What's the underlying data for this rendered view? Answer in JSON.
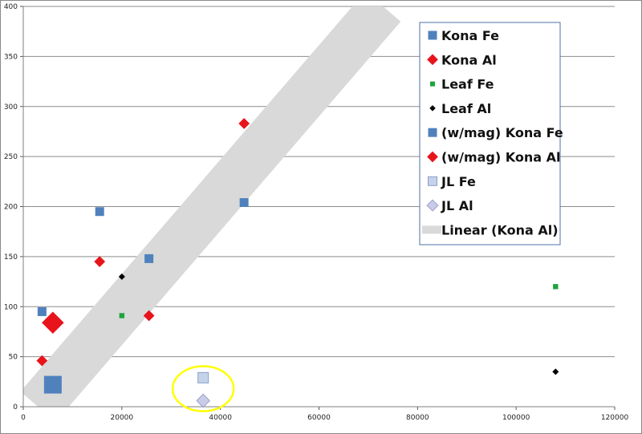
{
  "chart_data": {
    "type": "scatter",
    "title": "",
    "xlabel": "",
    "ylabel": "",
    "xlim": [
      0,
      120000
    ],
    "ylim": [
      0,
      400
    ],
    "x_ticks": [
      "0",
      "20000",
      "40000",
      "60000",
      "80000",
      "100000",
      "120000"
    ],
    "y_ticks": [
      "0",
      "50",
      "100",
      "150",
      "200",
      "250",
      "300",
      "350",
      "400"
    ],
    "grid": "horizontal",
    "legend_position": "top-right",
    "series": [
      {
        "name": "Kona Fe",
        "marker": "square",
        "color": "#4f81bd",
        "size": "small",
        "points": [
          [
            3800,
            95
          ],
          [
            15500,
            195
          ],
          [
            25500,
            148
          ],
          [
            44800,
            204
          ]
        ]
      },
      {
        "name": "Kona Al",
        "marker": "diamond",
        "color": "#e8141b",
        "size": "small",
        "points": [
          [
            3800,
            46
          ],
          [
            15500,
            145
          ],
          [
            25500,
            91
          ],
          [
            44800,
            283
          ]
        ]
      },
      {
        "name": "Leaf Fe",
        "marker": "square",
        "color": "#1ea53c",
        "size": "tiny",
        "points": [
          [
            20000,
            91
          ],
          [
            108000,
            120
          ]
        ]
      },
      {
        "name": "Leaf Al",
        "marker": "diamond",
        "color": "#000000",
        "size": "tiny",
        "points": [
          [
            20000,
            130
          ],
          [
            108000,
            35
          ]
        ]
      },
      {
        "name": "(w/mag) Kona Fe",
        "marker": "square",
        "color": "#4f81bd",
        "size": "large",
        "points": [
          [
            6000,
            22
          ]
        ]
      },
      {
        "name": "(w/mag) Kona Al",
        "marker": "diamond",
        "color": "#e8141b",
        "size": "large",
        "points": [
          [
            6000,
            84
          ]
        ]
      },
      {
        "name": "JL Fe",
        "marker": "square",
        "color": "#c5d3ea",
        "size": "medium",
        "points": [
          [
            36500,
            29
          ]
        ]
      },
      {
        "name": "JL Al",
        "marker": "diamond",
        "color": "#c9cce8",
        "size": "medium",
        "points": [
          [
            36500,
            6
          ]
        ]
      }
    ],
    "trendline": {
      "name": "Linear (Kona Al)",
      "color": "#d9d9d9",
      "from": [
        3000,
        0
      ],
      "to": [
        73000,
        400
      ]
    },
    "annotation": {
      "shape": "ellipse",
      "color": "#ffff00",
      "center": [
        36500,
        18
      ]
    }
  }
}
